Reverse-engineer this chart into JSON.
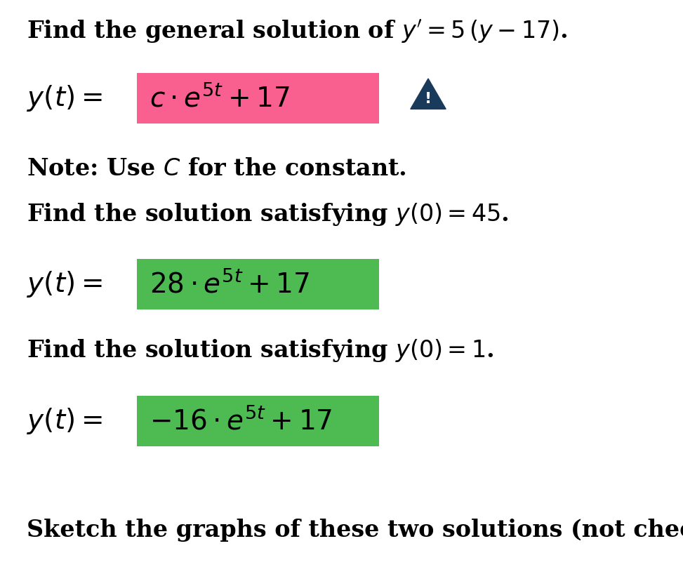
{
  "bg_color": "#ffffff",
  "title_line": "Find the general solution of $y^{\\prime} = 5\\,(y - 17)$.",
  "eq1_label": "$y(t) =$",
  "eq1_content": "$c \\cdot e^{5t} + 17$",
  "eq1_box_color": "#f96090",
  "eq1_border_color": "#f96090",
  "note_line": "Note: Use $C$ for the constant.",
  "find2_line": "Find the solution satisfying $y(0) = 45$.",
  "eq2_label": "$y(t) =$",
  "eq2_content": "$28 \\cdot e^{5t} + 17$",
  "eq2_box_color": "#4dbb52",
  "eq2_border_color": "#4dbb52",
  "find3_line": "Find the solution satisfying $y(0) = 1$.",
  "eq3_label": "$y(t) =$",
  "eq3_content": "$-16 \\cdot e^{5t} + 17$",
  "eq3_box_color": "#4dbb52",
  "eq3_border_color": "#4dbb52",
  "sketch_line": "Sketch the graphs of these two solutions (not checked).",
  "warning_color": "#1a3a5c",
  "font_size_body": 24,
  "font_size_eq": 28
}
